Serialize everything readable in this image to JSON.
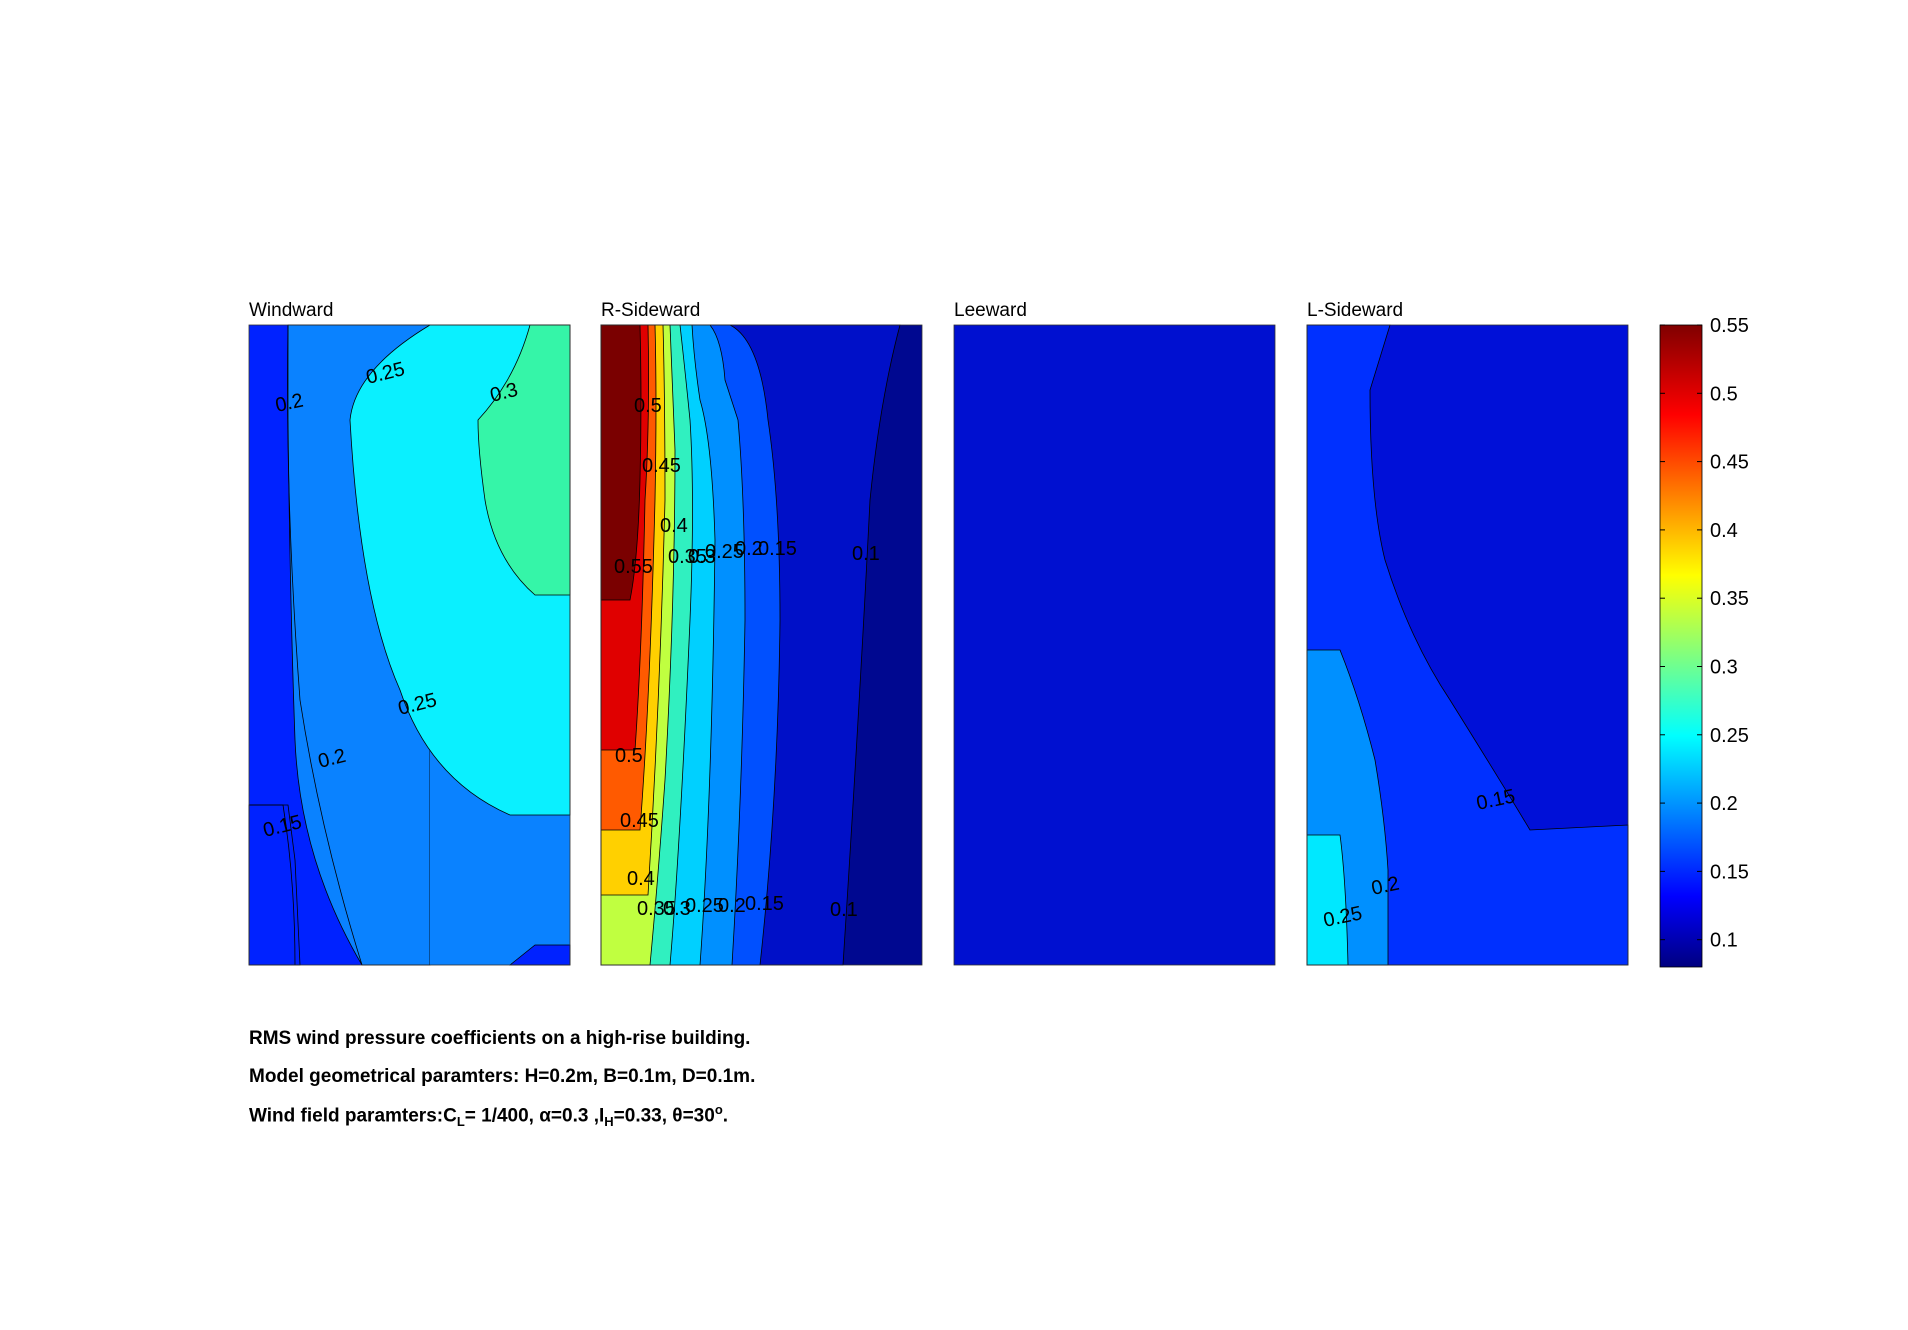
{
  "chart_data": {
    "type": "contour",
    "colormap": "jet",
    "clim": [
      0.08,
      0.55
    ],
    "colorbar": {
      "ticks": [
        "0.55",
        "0.5",
        "0.45",
        "0.4",
        "0.35",
        "0.3",
        "0.25",
        "0.2",
        "0.15",
        "0.1"
      ]
    },
    "panels": [
      {
        "title": "Windward",
        "regions": [
          {
            "level": 0.125,
            "color": "#0022ff"
          },
          {
            "level": 0.175,
            "color": "#0a82ff"
          },
          {
            "level": 0.225,
            "color": "#0af0ff"
          },
          {
            "level": 0.275,
            "color": "#35f5a8"
          }
        ],
        "contour_labels": [
          {
            "text": "0.2"
          },
          {
            "text": "0.25"
          },
          {
            "text": "0.3"
          },
          {
            "text": "0.25"
          },
          {
            "text": "0.2"
          },
          {
            "text": "0.15"
          }
        ]
      },
      {
        "title": "R-Sideward",
        "regions": [
          {
            "level": 0.08,
            "color": "#000890"
          },
          {
            "level": 0.1,
            "color": "#0010c8"
          },
          {
            "level": 0.15,
            "color": "#0050ff"
          },
          {
            "level": 0.2,
            "color": "#0090ff"
          },
          {
            "level": 0.25,
            "color": "#00d0ff"
          },
          {
            "level": 0.3,
            "color": "#30f0c0"
          },
          {
            "level": 0.35,
            "color": "#c0ff40"
          },
          {
            "level": 0.4,
            "color": "#ffd000"
          },
          {
            "level": 0.45,
            "color": "#ff5a00"
          },
          {
            "level": 0.5,
            "color": "#e00000"
          },
          {
            "level": 0.55,
            "color": "#7a0000"
          }
        ],
        "contour_labels": [
          {
            "text": "0.5"
          },
          {
            "text": "0.45"
          },
          {
            "text": "0.4"
          },
          {
            "text": "0.55"
          },
          {
            "text": "0.35"
          },
          {
            "text": "0.3"
          },
          {
            "text": "0.25"
          },
          {
            "text": "0.2"
          },
          {
            "text": "0.15"
          },
          {
            "text": "0.1"
          },
          {
            "text": "0.5"
          },
          {
            "text": "0.45"
          },
          {
            "text": "0.4"
          },
          {
            "text": "0.35"
          },
          {
            "text": "0.3"
          },
          {
            "text": "0.25"
          },
          {
            "text": "0.2"
          },
          {
            "text": "0.15"
          },
          {
            "text": "0.1"
          }
        ]
      },
      {
        "title": "Leeward",
        "regions": [
          {
            "level": 0.12,
            "color": "#0010d0"
          }
        ],
        "contour_labels": []
      },
      {
        "title": "L-Sideward",
        "regions": [
          {
            "level": 0.1,
            "color": "#0010d8"
          },
          {
            "level": 0.15,
            "color": "#0030ff"
          },
          {
            "level": 0.2,
            "color": "#0090ff"
          },
          {
            "level": 0.25,
            "color": "#00e8ff"
          }
        ],
        "contour_labels": [
          {
            "text": "0.15"
          },
          {
            "text": "0.2"
          },
          {
            "text": "0.25"
          }
        ]
      }
    ]
  },
  "caption": {
    "line1": "RMS wind pressure coefficients on a high-rise building.",
    "line2": "Model geometrical paramters: H=0.2m, B=0.1m, D=0.1m.",
    "line3_prefix": "Wind field paramters:C",
    "line3_sub1": "L",
    "line3_mid": "= 1/400, α=0.3 ,I",
    "line3_sub2": "H",
    "line3_mid2": "=0.33, θ=30",
    "line3_sup": "o",
    "line3_end": "."
  }
}
